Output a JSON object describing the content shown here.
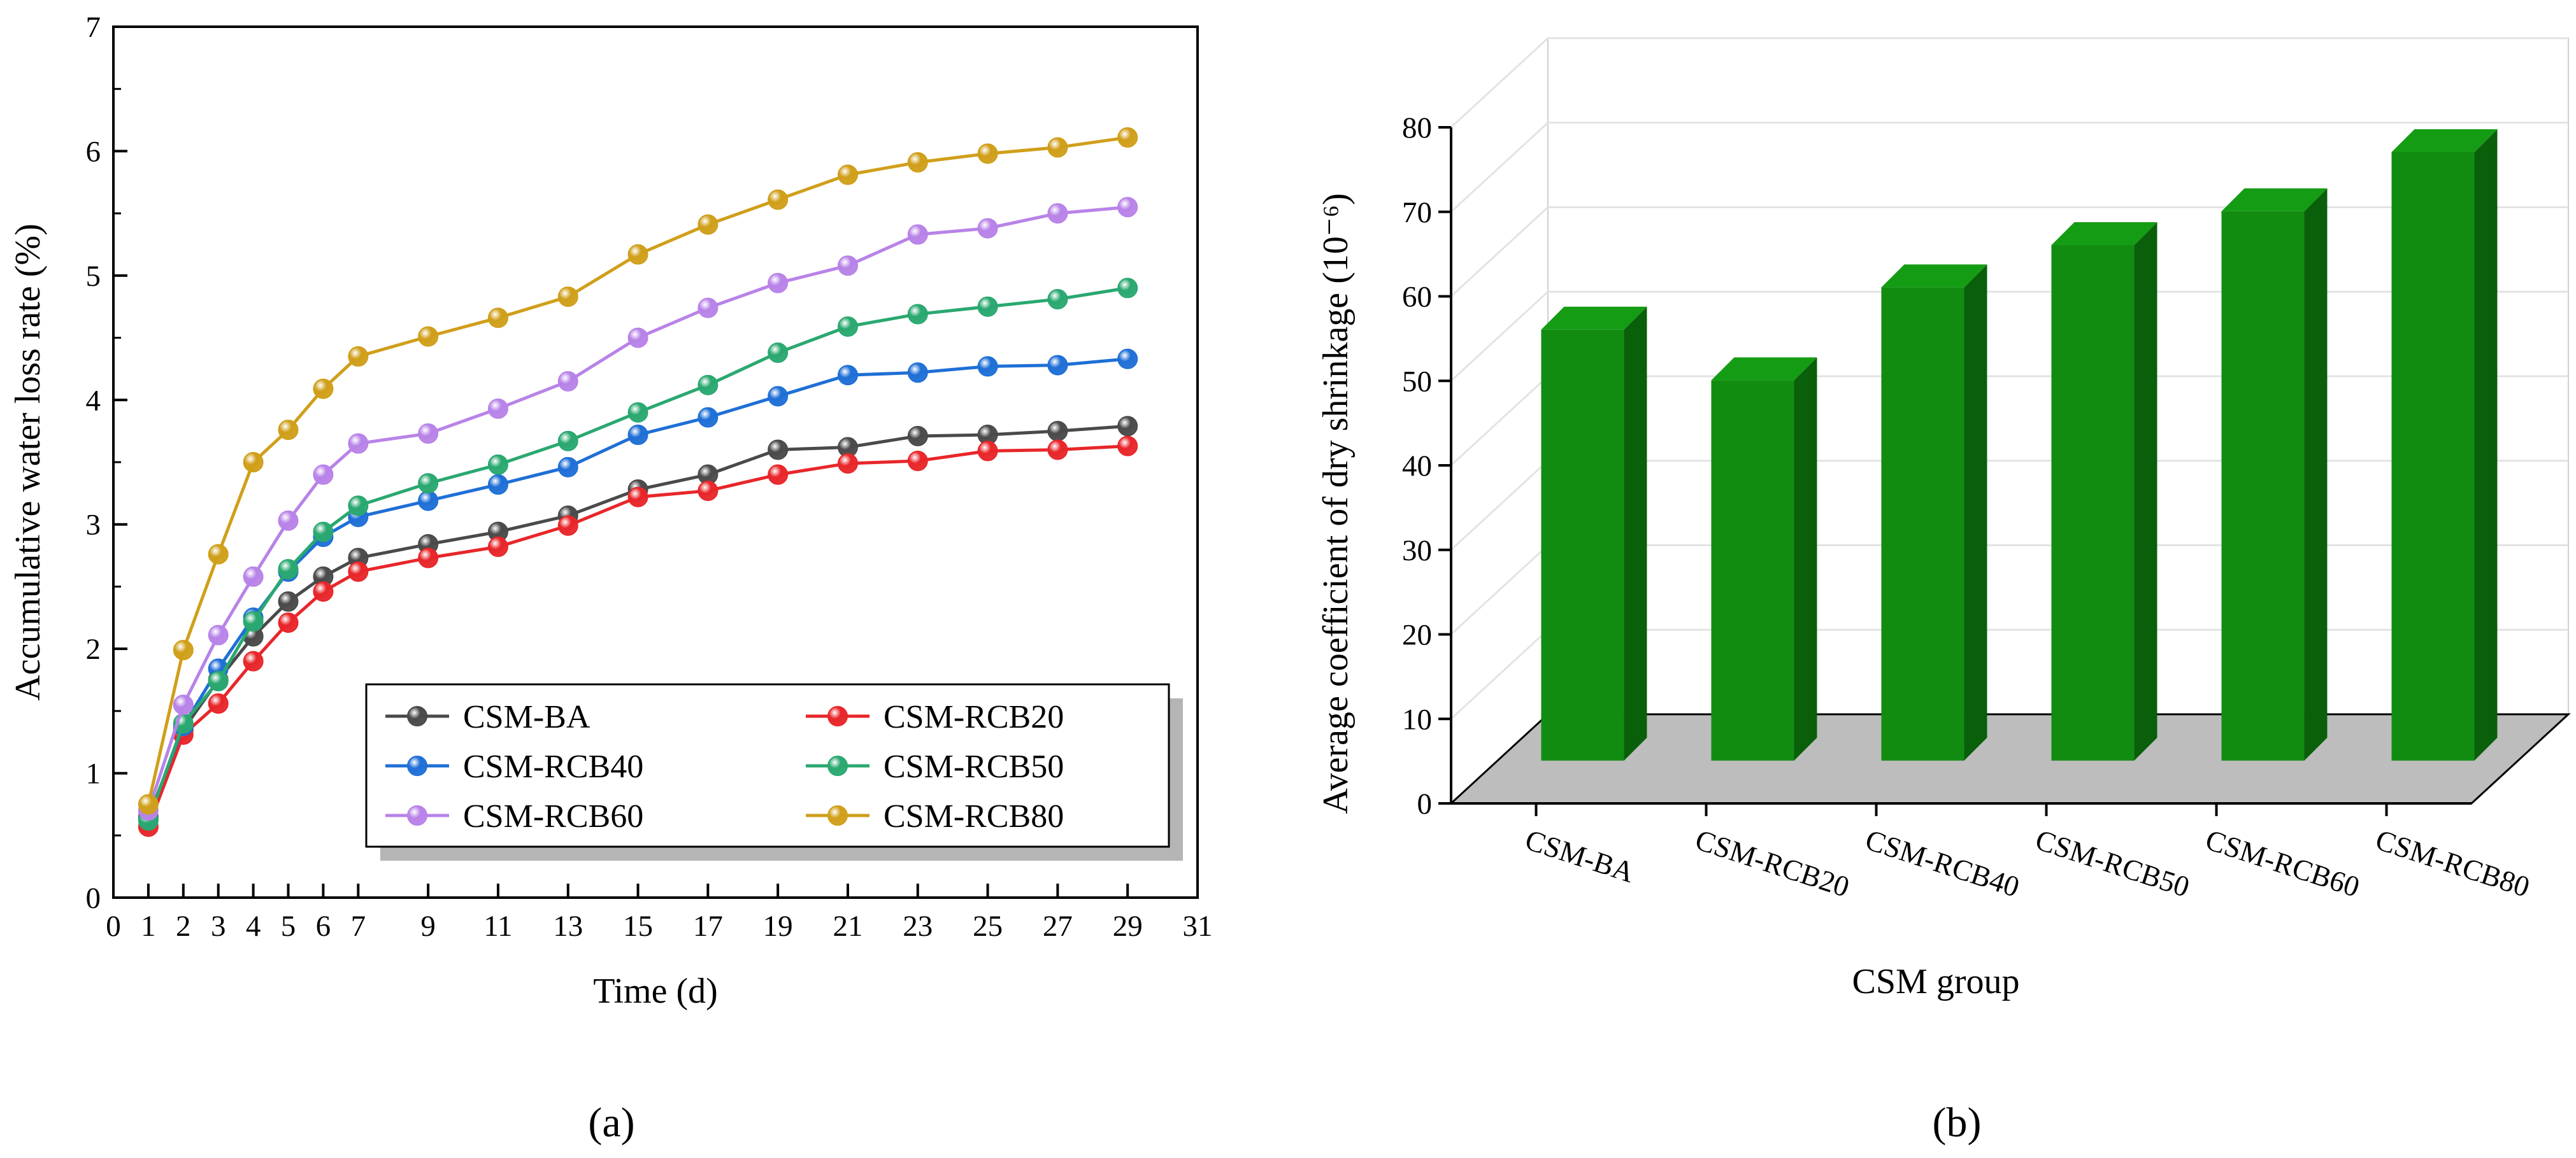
{
  "panel_labels": [
    "(a)",
    "(b)"
  ],
  "chart_data": [
    {
      "type": "line",
      "xlabel": "Time (d)",
      "ylabel": "Accumulative water loss rate (%)",
      "xlim": [
        0,
        31
      ],
      "ylim": [
        0,
        7
      ],
      "xticks": [
        0,
        1,
        2,
        3,
        4,
        5,
        6,
        7,
        9,
        11,
        13,
        15,
        17,
        19,
        21,
        23,
        25,
        27,
        29,
        31
      ],
      "yticks": [
        0,
        1,
        2,
        3,
        4,
        5,
        6,
        7
      ],
      "grid": false,
      "legend_position": "bottom-right",
      "x": [
        1,
        2,
        3,
        4,
        5,
        6,
        7,
        9,
        11,
        13,
        15,
        17,
        19,
        21,
        23,
        25,
        27,
        29
      ],
      "series": [
        {
          "name": "CSM-BA",
          "color": "#4a4a4a",
          "values": [
            0.65,
            1.35,
            1.75,
            2.1,
            2.38,
            2.58,
            2.73,
            2.84,
            2.94,
            3.07,
            3.28,
            3.4,
            3.6,
            3.62,
            3.71,
            3.72,
            3.75,
            3.79
          ]
        },
        {
          "name": "CSM-RCB20",
          "color": "#e8262a",
          "values": [
            0.57,
            1.31,
            1.56,
            1.9,
            2.21,
            2.46,
            2.62,
            2.73,
            2.82,
            2.99,
            3.22,
            3.27,
            3.4,
            3.49,
            3.51,
            3.59,
            3.6,
            3.63
          ]
        },
        {
          "name": "CSM-RCB40",
          "color": "#1f6fd6",
          "values": [
            0.63,
            1.38,
            1.84,
            2.25,
            2.62,
            2.9,
            3.06,
            3.19,
            3.32,
            3.46,
            3.72,
            3.86,
            4.03,
            4.2,
            4.22,
            4.27,
            4.28,
            4.33
          ]
        },
        {
          "name": "CSM-RCB50",
          "color": "#2aa870",
          "values": [
            0.62,
            1.4,
            1.74,
            2.22,
            2.64,
            2.94,
            3.15,
            3.33,
            3.48,
            3.67,
            3.9,
            4.12,
            4.38,
            4.59,
            4.69,
            4.75,
            4.81,
            4.9
          ]
        },
        {
          "name": "CSM-RCB60",
          "color": "#b883e8",
          "values": [
            0.7,
            1.55,
            2.11,
            2.58,
            3.03,
            3.4,
            3.65,
            3.73,
            3.93,
            4.15,
            4.5,
            4.74,
            4.94,
            5.08,
            5.33,
            5.38,
            5.5,
            5.55
          ]
        },
        {
          "name": "CSM-RCB80",
          "color": "#d09f1a",
          "values": [
            0.75,
            1.99,
            2.76,
            3.5,
            3.76,
            4.09,
            4.35,
            4.51,
            4.66,
            4.83,
            5.17,
            5.41,
            5.61,
            5.81,
            5.91,
            5.98,
            6.03,
            6.11
          ]
        }
      ]
    },
    {
      "type": "bar",
      "xlabel": "CSM group",
      "ylabel": "Average coefficient of dry shrinkage (10⁻⁶)",
      "ylim": [
        0,
        80
      ],
      "yticks": [
        0,
        10,
        20,
        30,
        40,
        50,
        60,
        70,
        80
      ],
      "grid": true,
      "bar_color": "#118c11",
      "floor_color": "#bdbdbd",
      "categories": [
        "CSM-BA",
        "CSM-RCB20",
        "CSM-RCB40",
        "CSM-RCB50",
        "CSM-RCB60",
        "CSM-RCB80"
      ],
      "values": [
        51,
        45,
        56,
        61,
        65,
        72
      ]
    }
  ]
}
